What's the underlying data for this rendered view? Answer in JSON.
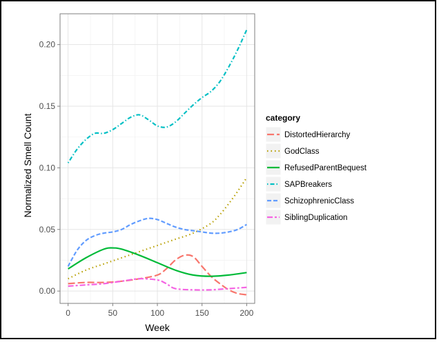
{
  "chart_data": {
    "type": "line",
    "title": "",
    "xlabel": "Week",
    "ylabel": "Normalized Smell Count",
    "xlim": [
      -9,
      209
    ],
    "ylim": [
      -0.01,
      0.225
    ],
    "x_ticks": [
      0,
      50,
      100,
      150,
      200
    ],
    "y_ticks": [
      0.0,
      0.05,
      0.1,
      0.15,
      0.2
    ],
    "x_tick_labels": [
      "0",
      "50",
      "100",
      "150",
      "200"
    ],
    "y_tick_labels": [
      "0.00",
      "0.05",
      "0.10",
      "0.15",
      "0.20"
    ],
    "grid": true,
    "legend_position": "right",
    "legend_title": "category",
    "series": [
      {
        "name": "DistortedHierarchy",
        "color": "#F8766D",
        "dash": "longdash",
        "x": [
          0,
          20,
          40,
          60,
          80,
          100,
          110,
          120,
          130,
          140,
          150,
          160,
          170,
          180,
          190,
          200
        ],
        "y": [
          0.006,
          0.007,
          0.007,
          0.008,
          0.01,
          0.013,
          0.018,
          0.025,
          0.029,
          0.028,
          0.02,
          0.012,
          0.006,
          0.001,
          -0.002,
          -0.003
        ]
      },
      {
        "name": "GodClass",
        "color": "#B79F00",
        "dash": "dotted",
        "x": [
          0,
          20,
          40,
          60,
          80,
          100,
          120,
          140,
          160,
          170,
          180,
          190,
          200
        ],
        "y": [
          0.01,
          0.017,
          0.022,
          0.027,
          0.032,
          0.037,
          0.042,
          0.047,
          0.055,
          0.062,
          0.071,
          0.081,
          0.092
        ]
      },
      {
        "name": "RefusedParentBequest",
        "color": "#00BA38",
        "dash": "solid",
        "x": [
          0,
          20,
          40,
          50,
          60,
          80,
          100,
          120,
          140,
          160,
          180,
          200
        ],
        "y": [
          0.018,
          0.027,
          0.034,
          0.035,
          0.034,
          0.029,
          0.023,
          0.017,
          0.013,
          0.012,
          0.013,
          0.015
        ]
      },
      {
        "name": "SAPBreakers",
        "color": "#00BFC4",
        "dash": "dotdash",
        "x": [
          0,
          10,
          20,
          30,
          40,
          50,
          60,
          70,
          80,
          90,
          100,
          110,
          120,
          130,
          140,
          150,
          160,
          170,
          180,
          190,
          200
        ],
        "y": [
          0.104,
          0.115,
          0.123,
          0.128,
          0.128,
          0.131,
          0.136,
          0.141,
          0.143,
          0.139,
          0.134,
          0.133,
          0.137,
          0.144,
          0.151,
          0.157,
          0.162,
          0.17,
          0.182,
          0.196,
          0.212
        ]
      },
      {
        "name": "SchizophrenicClass",
        "color": "#619CFF",
        "dash": "dashed",
        "x": [
          0,
          10,
          20,
          30,
          40,
          50,
          60,
          70,
          80,
          90,
          100,
          110,
          120,
          130,
          140,
          150,
          160,
          170,
          180,
          190,
          200
        ],
        "y": [
          0.02,
          0.033,
          0.041,
          0.045,
          0.047,
          0.048,
          0.05,
          0.054,
          0.057,
          0.059,
          0.058,
          0.055,
          0.052,
          0.05,
          0.049,
          0.048,
          0.047,
          0.047,
          0.048,
          0.05,
          0.054
        ]
      },
      {
        "name": "SiblingDuplication",
        "color": "#F564E3",
        "dash": "twodash",
        "x": [
          0,
          20,
          40,
          60,
          80,
          100,
          110,
          120,
          140,
          160,
          180,
          200
        ],
        "y": [
          0.004,
          0.005,
          0.006,
          0.008,
          0.01,
          0.009,
          0.006,
          0.002,
          0.001,
          0.001,
          0.002,
          0.003
        ]
      }
    ]
  }
}
